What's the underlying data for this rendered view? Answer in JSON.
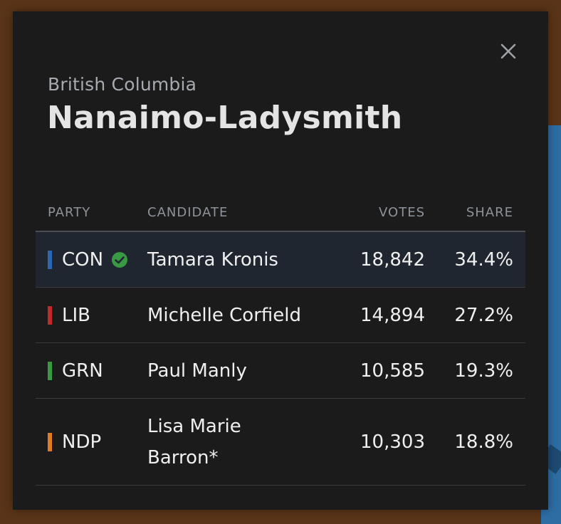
{
  "riding": {
    "province": "British Columbia",
    "name": "Nanaimo-Ladysmith"
  },
  "table": {
    "headers": {
      "party": "PARTY",
      "candidate": "CANDIDATE",
      "votes": "VOTES",
      "share": "SHARE"
    },
    "rows": [
      {
        "party": "CON",
        "candidate": "Tamara Kronis",
        "votes": "18,842",
        "share": "34.4%",
        "color": "#2f66b0",
        "winner": true
      },
      {
        "party": "LIB",
        "candidate": "Michelle Corfield",
        "votes": "14,894",
        "share": "27.2%",
        "color": "#c0292e",
        "winner": false
      },
      {
        "party": "GRN",
        "candidate": "Paul Manly",
        "votes": "10,585",
        "share": "19.3%",
        "color": "#3a9a44",
        "winner": false
      },
      {
        "party": "NDP",
        "candidate": "Lisa Marie Barron*",
        "votes": "10,303",
        "share": "18.8%",
        "color": "#e27c22",
        "winner": false
      }
    ]
  },
  "icons": {
    "close": "close-icon",
    "winner": "check-circle-icon"
  },
  "colors": {
    "panel_bg": "#1b1b1b",
    "winner_row_bg": "#1f2630",
    "winner_check": "#3a9a44"
  }
}
